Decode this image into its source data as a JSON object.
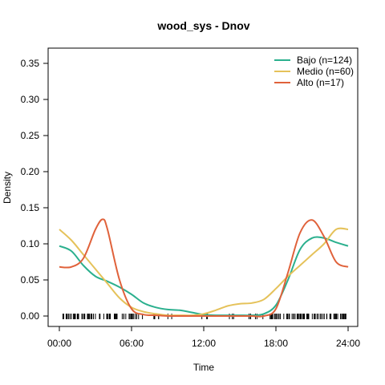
{
  "chart_data": {
    "type": "line",
    "title": "wood_sys - Dnov",
    "xlabel": "Time",
    "ylabel": "Density",
    "xlim": [
      0,
      24
    ],
    "ylim": [
      0,
      0.35
    ],
    "xticks": [
      0,
      6,
      12,
      18,
      24
    ],
    "xtick_labels": [
      "00:00",
      "06:00",
      "12:00",
      "18:00",
      "24:00"
    ],
    "yticks": [
      0.0,
      0.05,
      0.1,
      0.15,
      0.2,
      0.25,
      0.3,
      0.35
    ],
    "ytick_labels": [
      "0.00",
      "0.05",
      "0.10",
      "0.15",
      "0.20",
      "0.25",
      "0.30",
      "0.35"
    ],
    "grid": false,
    "legend_position": "top-right",
    "series": [
      {
        "name": "Bajo (n=124)",
        "color": "#2bb08e",
        "x": [
          0,
          1,
          2,
          3,
          4,
          5,
          6,
          7,
          8,
          9,
          10,
          11,
          12,
          13,
          14,
          15,
          16,
          17,
          18,
          19,
          20,
          21,
          22,
          23,
          24
        ],
        "y": [
          0.097,
          0.09,
          0.07,
          0.055,
          0.048,
          0.04,
          0.03,
          0.018,
          0.012,
          0.009,
          0.008,
          0.005,
          0.002,
          0.001,
          0.001,
          0.001,
          0.001,
          0.003,
          0.015,
          0.05,
          0.092,
          0.108,
          0.108,
          0.102,
          0.097
        ]
      },
      {
        "name": "Medio (n=60)",
        "color": "#e5c25a",
        "x": [
          0,
          1,
          2,
          3,
          4,
          5,
          6,
          7,
          8,
          9,
          10,
          11,
          12,
          13,
          14,
          15,
          16,
          17,
          18,
          19,
          20,
          21,
          22,
          23,
          24
        ],
        "y": [
          0.12,
          0.105,
          0.085,
          0.065,
          0.045,
          0.025,
          0.012,
          0.006,
          0.003,
          0.001,
          0.001,
          0.001,
          0.003,
          0.008,
          0.014,
          0.017,
          0.018,
          0.023,
          0.038,
          0.055,
          0.07,
          0.085,
          0.1,
          0.12,
          0.12
        ]
      },
      {
        "name": "Alto (n=17)",
        "color": "#e0623b",
        "x": [
          0,
          1,
          2,
          3,
          3.6,
          4,
          5,
          6,
          7,
          8,
          9,
          10,
          11,
          12,
          13,
          14,
          15,
          16,
          17,
          18,
          19,
          20,
          21,
          22,
          23,
          24
        ],
        "y": [
          0.068,
          0.068,
          0.08,
          0.12,
          0.134,
          0.12,
          0.05,
          0.01,
          0.002,
          0.001,
          0.0,
          0.0,
          0.0,
          0.0,
          0.0,
          0.0,
          0.0,
          0.0,
          0.0,
          0.01,
          0.06,
          0.115,
          0.133,
          0.11,
          0.075,
          0.068
        ]
      }
    ]
  }
}
